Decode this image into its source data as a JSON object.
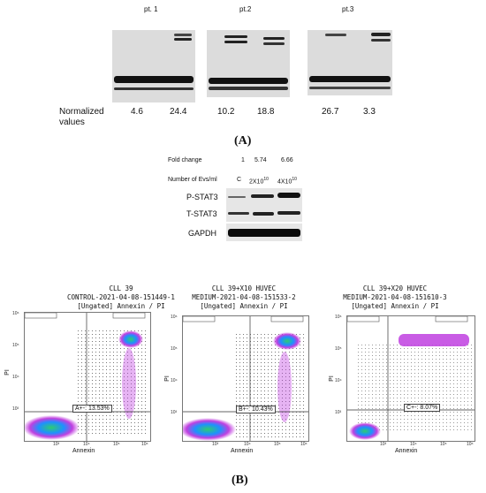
{
  "panel_a": {
    "patients": [
      "pt. 1",
      "pt.2",
      "pt.3"
    ],
    "normalized_label_line1": "Normalized",
    "normalized_label_line2": "values",
    "values": [
      [
        "4.6",
        "24.4"
      ],
      [
        "10.2",
        "18.8"
      ],
      [
        "26.7",
        "3.3"
      ]
    ],
    "letter": "(A)"
  },
  "western": {
    "fold_change_label": "Fold change",
    "fold_changes": [
      "1",
      "5.74",
      "6.66"
    ],
    "evs_label": "Number of Evs/ml",
    "lanes": [
      "C",
      "2X10",
      "4X10"
    ],
    "exponent": "10",
    "rows": [
      "P-STAT3",
      "T-STAT3",
      "GAPDH"
    ]
  },
  "panel_b": {
    "letter": "(B)",
    "plots": [
      {
        "title1": "CLL 39",
        "title2": "CONTROL-2021-04-08-151449-1",
        "title3": "[Ungated] Annexin / PI",
        "gate": "A+-: 13.53%"
      },
      {
        "title1": "CLL 39+X10 HUVEC",
        "title2": "MEDIUM-2021-04-08-151533-2",
        "title3": "[Ungated] Annexin / PI",
        "gate": "B+-: 10.43%"
      },
      {
        "title1": "CLL 39+X20 HUVEC",
        "title2": "MEDIUM-2021-04-08-151610-3",
        "title3": "[Ungated] Annexin / PI",
        "gate": "C+-: 8.07%"
      }
    ],
    "xlabel": "Annexin",
    "ylabel": "PI",
    "yticks": [
      "10⁶",
      "10⁵",
      "10⁴",
      "10³"
    ],
    "xticks": [
      "10³",
      "10⁴",
      "10⁵",
      "10⁶"
    ]
  }
}
